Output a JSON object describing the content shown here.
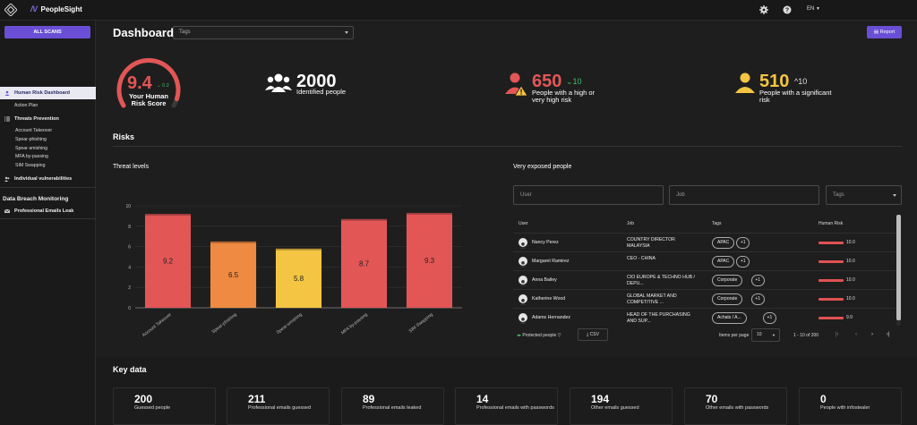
{
  "app": {
    "brand": "PeopleSight",
    "brand_mark": "/\\/",
    "lang": "EN"
  },
  "sidebar": {
    "all_scans": "ALL SCANS",
    "active": "Human Risk Dashboard",
    "action_plan": "Action Plan",
    "threats_heading": "Threats Prevention",
    "threats": [
      "Account Takeover",
      "Spear-phishing",
      "Spear-smishing",
      "MFA by-passing",
      "SIM Swapping"
    ],
    "individual": "Individual vulnerabilities",
    "data_breach": "Data Breach Monitoring",
    "professional_leak": "Professional Emails Leak"
  },
  "header": {
    "title": "Dashboard",
    "tags_placeholder": "Tags",
    "report": "Report"
  },
  "kpis": {
    "score": {
      "value": "9.4",
      "delta": "0.2",
      "label1": "Your Human",
      "label2": "Risk Score",
      "fraction": 0.94
    },
    "identified": {
      "value": "2000",
      "label": "Identified people"
    },
    "high": {
      "value": "650",
      "delta": "10",
      "label1": "People with a high or",
      "label2": "very high risk"
    },
    "significant": {
      "value": "510",
      "delta": "10",
      "label1": "People with a significant",
      "label2": "risk"
    }
  },
  "risks_title": "Risks",
  "threat_levels": {
    "title": "Threat levels",
    "chart_data": {
      "type": "bar",
      "categories": [
        "Account Takeover",
        "Spear-phishing",
        "Spear-smishing",
        "MFA by-passing",
        "SIM Swapping"
      ],
      "values": [
        9.2,
        6.5,
        5.8,
        8.7,
        9.3
      ],
      "colors": [
        "#e35656",
        "#ef8a42",
        "#f4c542",
        "#e35656",
        "#e35656"
      ],
      "yticks": [
        0,
        2,
        4,
        6,
        8,
        10
      ],
      "ylim": [
        0,
        10
      ]
    }
  },
  "exposed": {
    "title": "Very exposed people",
    "user_placeholder": "User",
    "job_placeholder": "Job",
    "tags_placeholder": "Tags",
    "columns": [
      "User",
      "Job",
      "Tags",
      "Human Risk"
    ],
    "rows": [
      {
        "name": "Nancy Perez",
        "job": "COUNTRY DIRECTOR MALAYSIA",
        "tag": "APAC",
        "more": "+1",
        "risk": "10.0",
        "level": 1.0
      },
      {
        "name": "Margaret Ramirez",
        "job": "CEO - CHINA",
        "tag": "APAC",
        "more": "+1",
        "risk": "10.0",
        "level": 1.0
      },
      {
        "name": "Anna Bailey",
        "job": "CIO EUROPE & TECHNO HUB / DEPU...",
        "tag": "Corporate",
        "more": "+1",
        "risk": "10.0",
        "level": 1.0
      },
      {
        "name": "Katherine Wood",
        "job": "GLOBAL MARKET AND COMPETITIVE ...",
        "tag": "Corporate",
        "more": "+1",
        "risk": "10.0",
        "level": 1.0
      },
      {
        "name": "Adams Hernandez",
        "job": "HEAD OF THE PURCHASING AND SUP...",
        "tag": "Achats / A...",
        "more": "+1",
        "risk": "9.9",
        "level": 0.99
      }
    ],
    "protected_people": "Protected people",
    "csv": "CSV",
    "items_per_page_label": "Items per page",
    "items_per_page": "10",
    "range": "1 - 10 of 200"
  },
  "key_data": {
    "title": "Key data",
    "cards": [
      {
        "num": "200",
        "label": "Guessed people"
      },
      {
        "num": "211",
        "label": "Professional emails guessed"
      },
      {
        "num": "89",
        "label": "Professional emails leaked"
      },
      {
        "num": "14",
        "label": "Professional emails with passwords"
      },
      {
        "num": "194",
        "label": "Other emails guessed"
      },
      {
        "num": "70",
        "label": "Other emails with passwords"
      },
      {
        "num": "0",
        "label": "People with infostealer"
      }
    ]
  }
}
